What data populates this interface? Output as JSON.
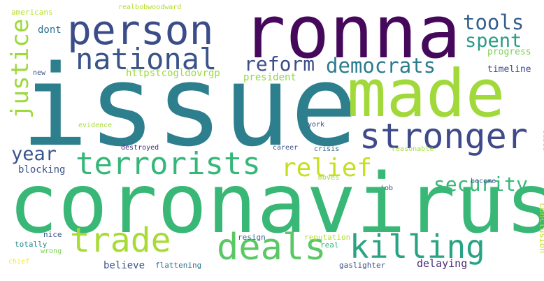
{
  "words": {
    "issue": {
      "text": "issue",
      "color": "#2e7f8e"
    },
    "ronna": {
      "text": "ronna",
      "color": "#45085b"
    },
    "person": {
      "text": "person",
      "color": "#3b4c89"
    },
    "made": {
      "text": "made",
      "color": "#a1d93a"
    },
    "coronavirus": {
      "text": "coronavirus",
      "color": "#38b776"
    },
    "stronger": {
      "text": "stronger",
      "color": "#3e4a89"
    },
    "national": {
      "text": "national",
      "color": "#3a5388"
    },
    "killing": {
      "text": "killing",
      "color": "#29a384"
    },
    "trade": {
      "text": "trade",
      "color": "#a8db34"
    },
    "deals": {
      "text": "deals",
      "color": "#5ac864"
    },
    "terrorists": {
      "text": "terrorists",
      "color": "#35b779"
    },
    "tools": {
      "text": "tools",
      "color": "#345f8d"
    },
    "spent": {
      "text": "spent",
      "color": "#2a9a88"
    },
    "reform": {
      "text": "reform",
      "color": "#3d4d8a"
    },
    "democrats": {
      "text": "democrats",
      "color": "#2c7c8e"
    },
    "justice": {
      "text": "justice",
      "color": "#9dd93b"
    },
    "security": {
      "text": "security",
      "color": "#38b877"
    },
    "relief": {
      "text": "relief",
      "color": "#c6e020"
    },
    "year": {
      "text": "year",
      "color": "#3a548c"
    },
    "dont": {
      "text": "dont",
      "color": "#2e6f8e"
    },
    "progress": {
      "text": "progress",
      "color": "#7dd250"
    },
    "timeline": {
      "text": "timeline",
      "color": "#3e4c8a"
    },
    "httpstcogldovrgp": {
      "text": "httpstcogldovrgp",
      "color": "#9cd93b"
    },
    "president": {
      "text": "president",
      "color": "#90d743"
    },
    "realbobwoodward": {
      "text": "realbobwoodward",
      "color": "#b5de2b"
    },
    "americans": {
      "text": "americans",
      "color": "#b8de29"
    },
    "new": {
      "text": "new",
      "color": "#3a548c"
    },
    "evidence": {
      "text": "evidence",
      "color": "#a5db36"
    },
    "york": {
      "text": "york",
      "color": "#3f4889"
    },
    "destroyed": {
      "text": "destroyed",
      "color": "#472f7d"
    },
    "career": {
      "text": "career",
      "color": "#3b518b"
    },
    "crisis": {
      "text": "crisis",
      "color": "#31668e"
    },
    "reasonable": {
      "text": "reasonable",
      "color": "#a2da37"
    },
    "based": {
      "text": "based",
      "color": "#c8e020"
    },
    "blocking": {
      "text": "blocking",
      "color": "#3b528b"
    },
    "moves": {
      "text": "moves",
      "color": "#a8db34"
    },
    "job": {
      "text": "job",
      "color": "#3e4a89"
    },
    "become": {
      "text": "become",
      "color": "#3a548c"
    },
    "conclusion": {
      "text": "conclusion",
      "color": "#c5e021"
    },
    "nice": {
      "text": "nice",
      "color": "#3b528b"
    },
    "resign": {
      "text": "resign",
      "color": "#31688e"
    },
    "reputation": {
      "text": "reputation",
      "color": "#b2dd2d"
    },
    "real": {
      "text": "real",
      "color": "#35b779"
    },
    "totally": {
      "text": "totally",
      "color": "#23898e"
    },
    "wrong": {
      "text": "wrong",
      "color": "#7ad151"
    },
    "chief": {
      "text": "chief",
      "color": "#fde725"
    },
    "believe": {
      "text": "believe",
      "color": "#3b528b"
    },
    "flattening": {
      "text": "flattening",
      "color": "#2c728e"
    },
    "gaslighter": {
      "text": "gaslighter",
      "color": "#3e4c8a"
    },
    "delaying": {
      "text": "delaying",
      "color": "#472c7a"
    }
  }
}
